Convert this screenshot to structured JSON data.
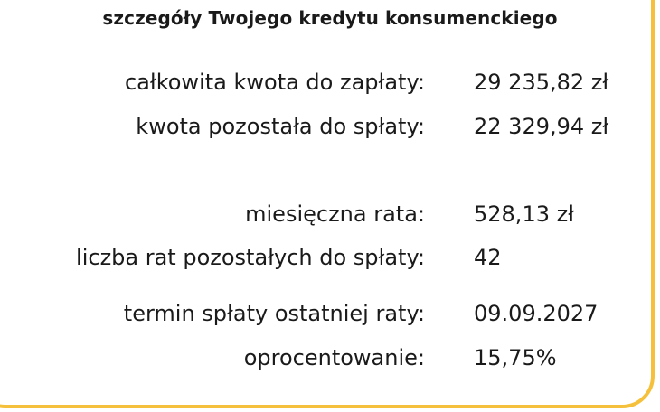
{
  "title": "szczegóły Twojego kredytu konsumenckiego",
  "colors": {
    "accent_border": "#f5c13c"
  },
  "details": [
    {
      "label": "całkowita kwota do zapłaty:",
      "value": "29 235,82 zł"
    },
    {
      "label": "kwota pozostała do spłaty:",
      "value": "22 329,94 zł"
    },
    {
      "label": "miesięczna rata:",
      "value": "528,13 zł"
    },
    {
      "label": "liczba rat pozostałych do spłaty:",
      "value": "42"
    },
    {
      "label": "termin spłaty ostatniej raty:",
      "value": "09.09.2027"
    },
    {
      "label": "oprocentowanie:",
      "value": "15,75%"
    }
  ]
}
